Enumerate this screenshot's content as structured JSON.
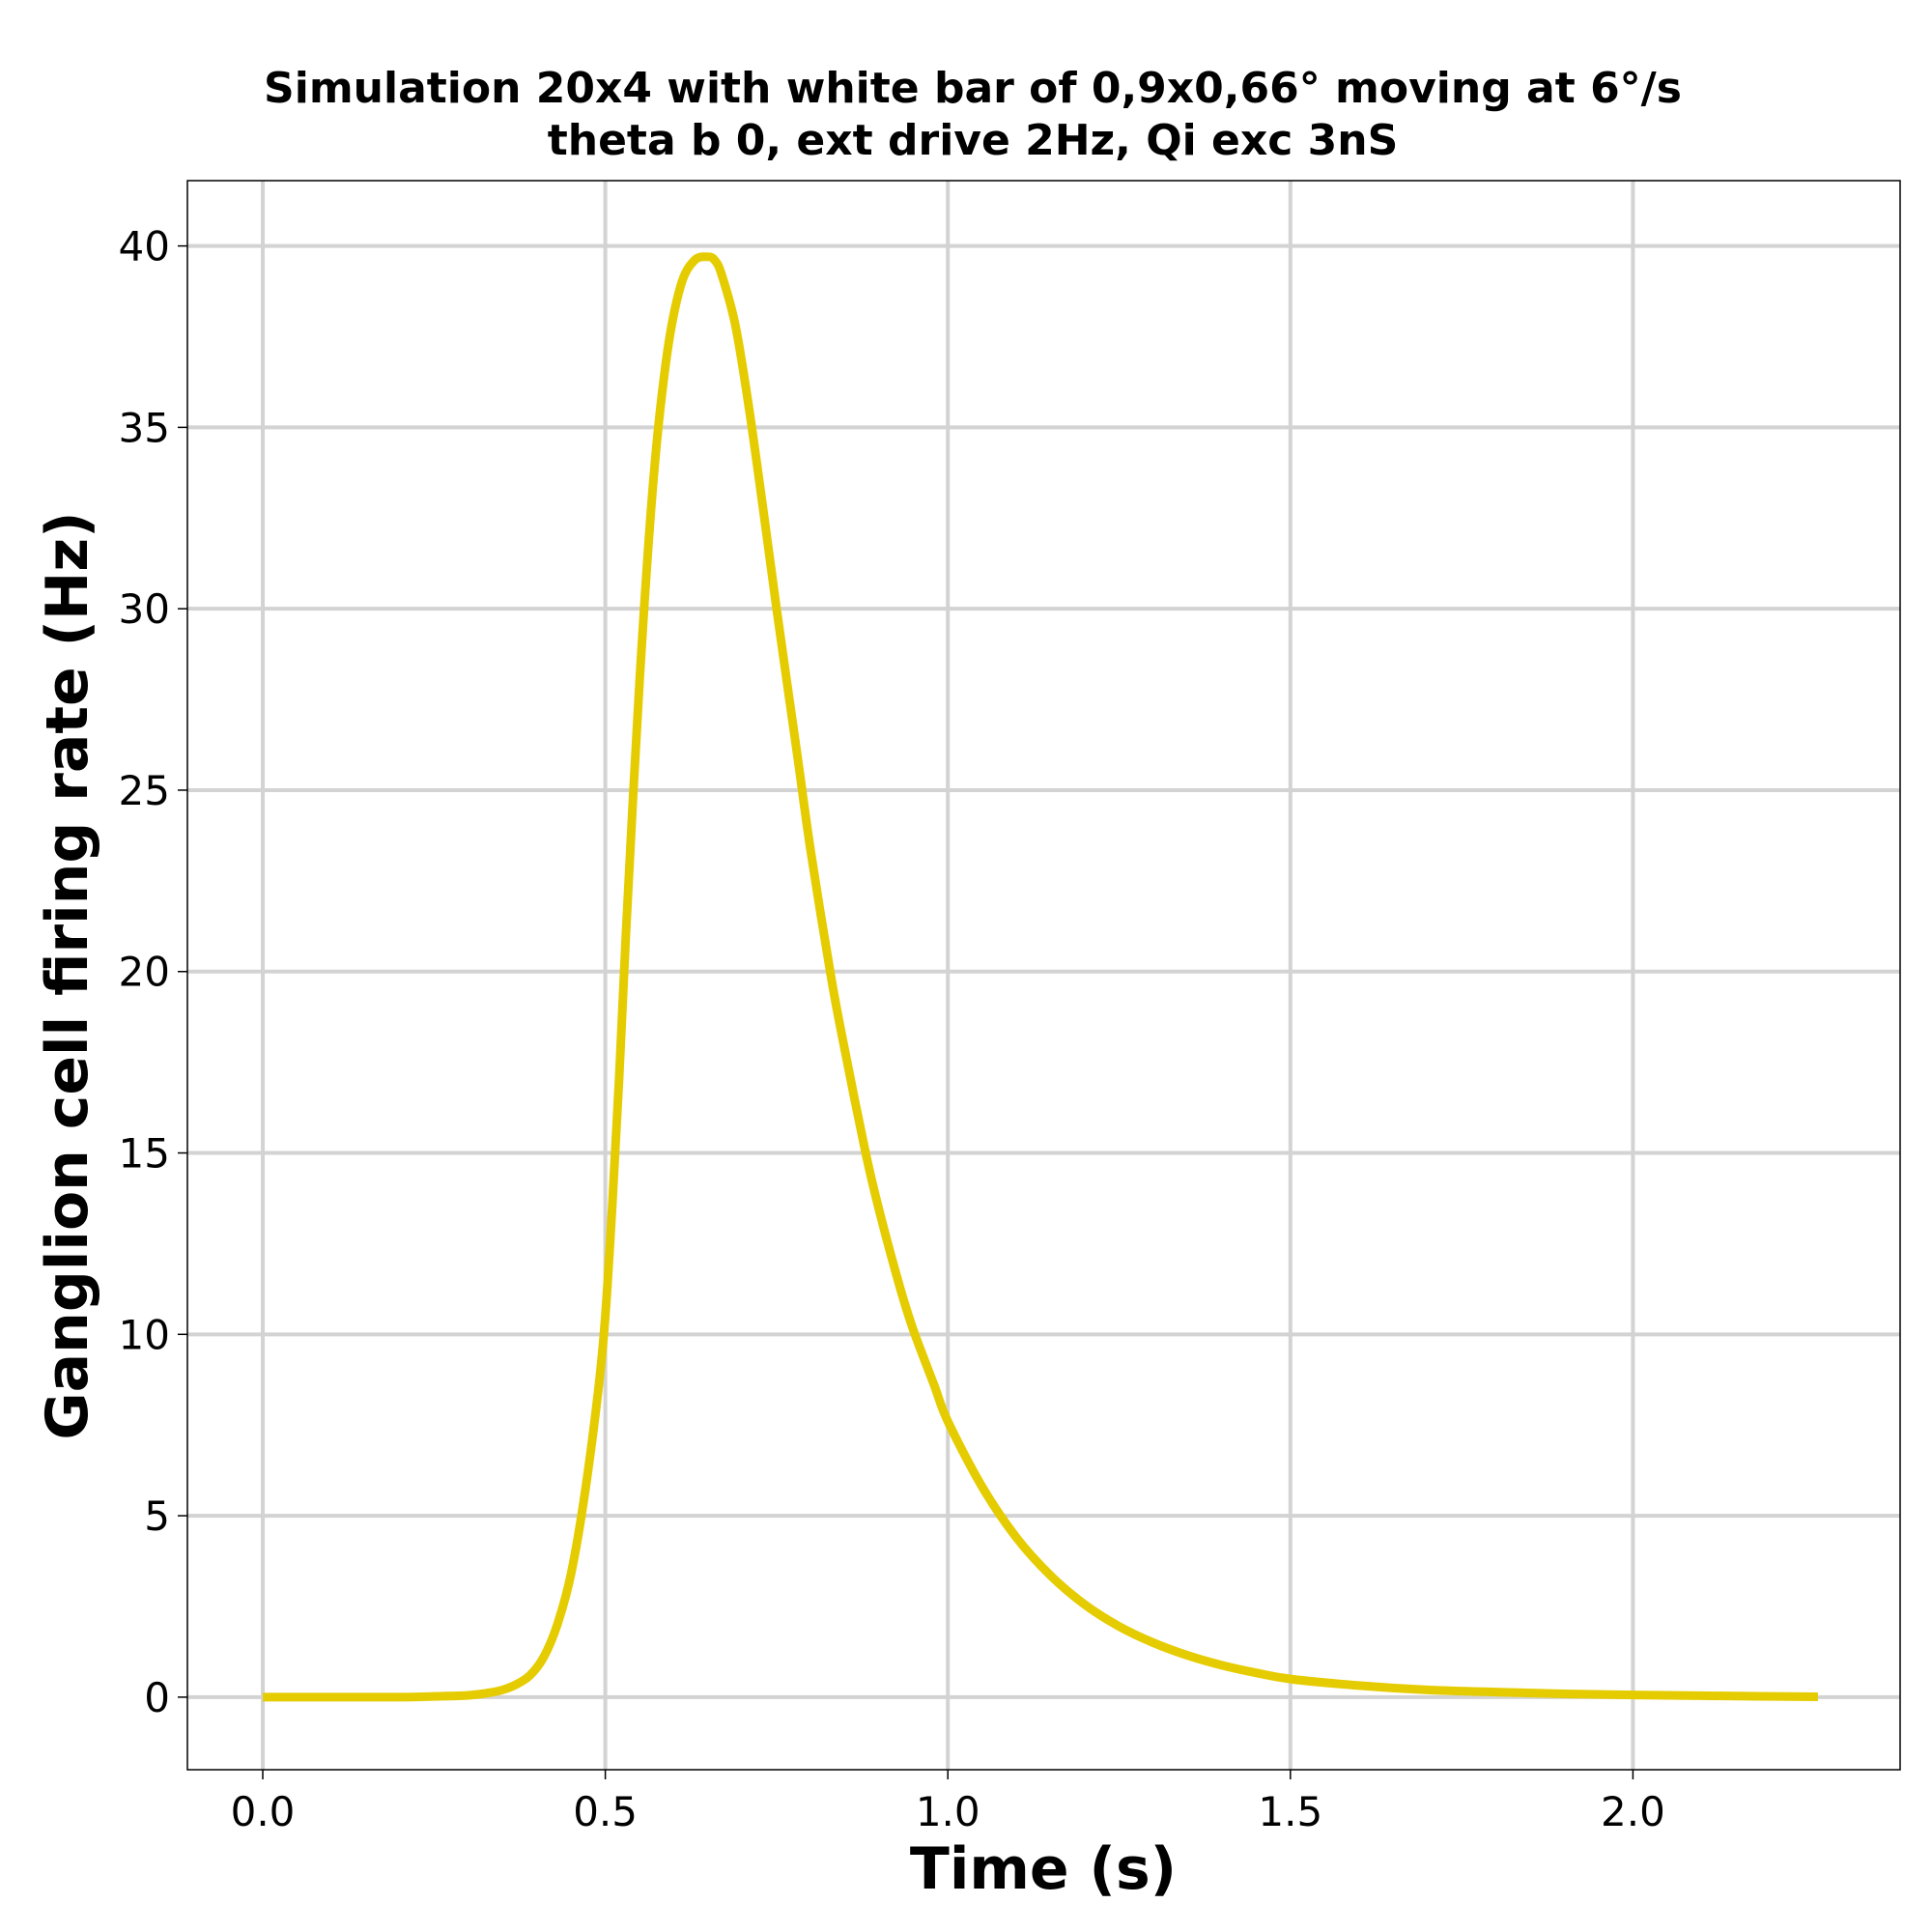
{
  "chart_data": {
    "type": "line",
    "title": "Simulation 20x4 with white bar of 0,9x0,66° moving at 6°/s",
    "subtitle": "theta b 0, ext drive 2Hz, Qi exc 3nS",
    "xlabel": "Time (s)",
    "ylabel": "Ganglion cell firing rate (Hz)",
    "xlim": [
      -0.11,
      2.39
    ],
    "ylim": [
      -2,
      41.8
    ],
    "xticks": [
      0.0,
      0.5,
      1.0,
      1.5,
      2.0
    ],
    "xtick_labels": [
      "0.0",
      "0.5",
      "1.0",
      "1.5",
      "2.0"
    ],
    "yticks": [
      0,
      5,
      10,
      15,
      20,
      25,
      30,
      35,
      40
    ],
    "ytick_labels": [
      "0",
      "5",
      "10",
      "15",
      "20",
      "25",
      "30",
      "35",
      "40"
    ],
    "grid": true,
    "legend": false,
    "series": [
      {
        "color": "#e5cc00",
        "x": [
          0.0,
          0.1,
          0.2,
          0.25,
          0.3,
          0.33,
          0.35,
          0.37,
          0.39,
          0.41,
          0.43,
          0.45,
          0.47,
          0.49,
          0.5,
          0.51,
          0.52,
          0.53,
          0.55,
          0.57,
          0.59,
          0.61,
          0.63,
          0.65,
          0.66,
          0.67,
          0.69,
          0.71,
          0.73,
          0.75,
          0.78,
          0.8,
          0.83,
          0.85,
          0.88,
          0.9,
          0.93,
          0.95,
          0.98,
          1.0,
          1.05,
          1.1,
          1.15,
          1.2,
          1.25,
          1.3,
          1.35,
          1.4,
          1.45,
          1.5,
          1.6,
          1.7,
          1.8,
          1.9,
          2.0,
          2.1,
          2.2,
          2.27
        ],
        "y": [
          0,
          0,
          0,
          0.02,
          0.05,
          0.12,
          0.2,
          0.35,
          0.6,
          1.1,
          2.0,
          3.4,
          5.6,
          8.5,
          10.5,
          13.5,
          17.0,
          21.0,
          28.0,
          33.5,
          37.0,
          38.9,
          39.6,
          39.7,
          39.6,
          39.2,
          37.8,
          35.5,
          32.8,
          30.0,
          26.0,
          23.3,
          19.8,
          17.8,
          15.0,
          13.4,
          11.3,
          10.1,
          8.6,
          7.6,
          5.8,
          4.4,
          3.35,
          2.55,
          1.95,
          1.5,
          1.15,
          0.88,
          0.67,
          0.5,
          0.32,
          0.2,
          0.14,
          0.09,
          0.06,
          0.04,
          0.02,
          0.01
        ]
      }
    ]
  }
}
